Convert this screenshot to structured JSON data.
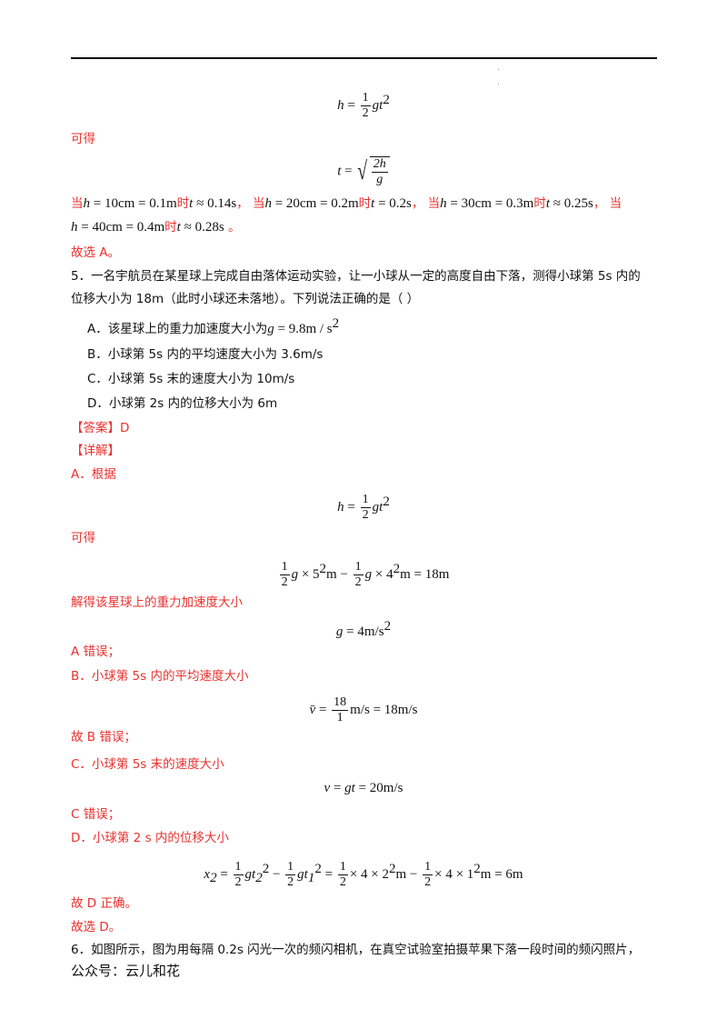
{
  "colors": {
    "answer_red": "#e8312f",
    "text": "#111111"
  },
  "eq1": [
    {
      "t": "h",
      "i": 1
    },
    {
      "t": " = "
    },
    {
      "f": [
        "1",
        "2"
      ]
    },
    {
      "t": "gt",
      "i": 1
    },
    {
      "sup": "2"
    }
  ],
  "kede1": "可得",
  "eq2": [
    {
      "t": "t",
      "i": 1
    },
    {
      "t": " = "
    },
    {
      "sqrt": [
        "2h",
        "g"
      ]
    }
  ],
  "line_a": [
    {
      "r": "当"
    },
    {
      "t": "h",
      "i": 1
    },
    {
      "t": " = 10cm = 0.1m"
    },
    {
      "r": "时"
    },
    {
      "t": "t",
      "i": 1
    },
    {
      "t": " ≈ 0.14s"
    },
    {
      "r": "， 当"
    },
    {
      "t": "h",
      "i": 1
    },
    {
      "t": " = 20cm = 0.2m"
    },
    {
      "r": "时"
    },
    {
      "t": "t",
      "i": 1
    },
    {
      "t": " = 0.2s"
    },
    {
      "r": "， 当"
    },
    {
      "t": "h",
      "i": 1
    },
    {
      "t": " = 30cm = 0.3m"
    },
    {
      "r": "时"
    },
    {
      "t": "t",
      "i": 1
    },
    {
      "t": " ≈ 0.25s"
    },
    {
      "r": "， 当"
    }
  ],
  "line_b": [
    {
      "t": "h",
      "i": 1
    },
    {
      "t": " = 40cm = 0.4m"
    },
    {
      "r": "时"
    },
    {
      "t": "t",
      "i": 1
    },
    {
      "t": " ≈ 0.28s"
    },
    {
      "r": " 。"
    }
  ],
  "choose_a": "故选 A。",
  "q5_line1": "5．一名宇航员在某星球上完成自由落体运动实验，让一小球从一定的高度自由下落，测得小球第 5s 内的",
  "q5_line2": "位移大小为  18m（此时小球还未落地）。下列说法正确的是（        ）",
  "opt_a_text": "A．该星球上的重力加速度大小为",
  "opt_a_formula": [
    {
      "t": "g",
      "i": 1
    },
    {
      "t": " = 9.8m / s"
    },
    {
      "sup": "2"
    }
  ],
  "opt_b": "B．小球第 5s 内的平均速度大小为 3.6m/s",
  "opt_c": "C．小球第 5s 末的速度大小为  10m/s",
  "opt_d": "D．小球第 2s 内的位移大小为 6m",
  "answer": "【答案】D",
  "detail": "【详解】",
  "a_basis": "A．根据",
  "eq3": [
    {
      "t": "h",
      "i": 1
    },
    {
      "t": " = "
    },
    {
      "f": [
        "1",
        "2"
      ]
    },
    {
      "t": "gt",
      "i": 1
    },
    {
      "sup": "2"
    }
  ],
  "kede2": "可得",
  "eq4": [
    {
      "f": [
        "1",
        "2"
      ]
    },
    {
      "t": "g",
      "i": 1
    },
    {
      "t": " × 5"
    },
    {
      "sup": "2"
    },
    {
      "t": "m − "
    },
    {
      "f": [
        "1",
        "2"
      ]
    },
    {
      "t": "g",
      "i": 1
    },
    {
      "t": " × 4"
    },
    {
      "sup": "2"
    },
    {
      "t": "m = 18m"
    }
  ],
  "solve_g": "解得该星球上的重力加速度大小",
  "eq5": [
    {
      "t": "g",
      "i": 1
    },
    {
      "t": " = 4m/s"
    },
    {
      "sup": "2"
    }
  ],
  "a_wrong": "A 错误；",
  "b_text": "B．小球第 5s  内的平均速度大小",
  "eq6": [
    {
      "t": "v̄",
      "i": 1
    },
    {
      "t": " = "
    },
    {
      "f": [
        "18",
        "1"
      ]
    },
    {
      "t": "m/s = 18m/s"
    }
  ],
  "b_wrong": "故 B 错误；",
  "c_text": "C．小球第 5s 末的速度大小",
  "eq7": [
    {
      "t": "v",
      "i": 1
    },
    {
      "t": " = "
    },
    {
      "t": "gt",
      "i": 1
    },
    {
      "t": "  = 20m/s"
    }
  ],
  "c_wrong": "C 错误；",
  "d_text": "D．小球第 2 s 内的位移大小",
  "eq8": [
    {
      "t": "x",
      "i": 1
    },
    {
      "sub": "2"
    },
    {
      "t": " = "
    },
    {
      "f": [
        "1",
        "2"
      ]
    },
    {
      "t": "gt",
      "i": 1
    },
    {
      "sub": "2"
    },
    {
      "sup": "2"
    },
    {
      "t": " − "
    },
    {
      "f": [
        "1",
        "2"
      ]
    },
    {
      "t": "gt",
      "i": 1
    },
    {
      "sub": "1"
    },
    {
      "sup": "2"
    },
    {
      "t": " = "
    },
    {
      "f": [
        "1",
        "2"
      ]
    },
    {
      "t": "× 4 × 2"
    },
    {
      "sup": "2"
    },
    {
      "t": "m − "
    },
    {
      "f": [
        "1",
        "2"
      ]
    },
    {
      "t": "× 4 × 1"
    },
    {
      "sup": "2"
    },
    {
      "t": "m = 6m"
    }
  ],
  "d_right": "故 D 正确。",
  "choose_d": "故选 D。",
  "q6_line1": "6．如图所示，图为用每隔 0.2s 闪光一次的频闪相机，在真空试验室拍摄苹果下落一段时间的频闪照片，",
  "footer": "公众号：云儿和花"
}
